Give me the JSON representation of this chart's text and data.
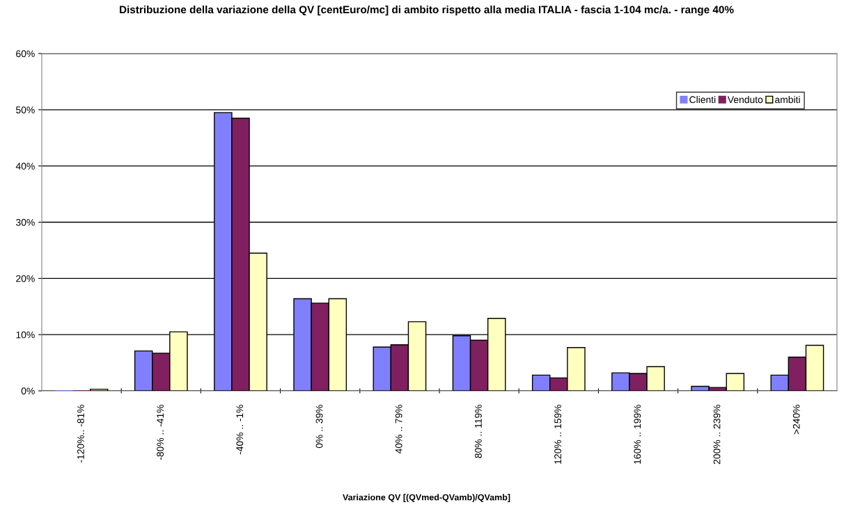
{
  "chart_data": {
    "type": "bar",
    "title": "Distribuzione della variazione della QV [centEuro/mc] di ambito rispetto alla media ITALIA - fascia 1-104 mc/a. - range 40%",
    "xlabel": "Variazione QV [(QVmed-QVamb)/QVamb]",
    "categories": [
      "-120%.. -81%",
      "-80% .. -41%",
      "-40% .. -1%",
      "0% .. 39%",
      "40% .. 79%",
      "80% .. 119%",
      "120% .. 159%",
      "160% .. 199%",
      "200% .. 239%",
      ">240%"
    ],
    "series": [
      {
        "name": "Clienti",
        "color": "#8080ff",
        "values": [
          0,
          7.1,
          49.5,
          16.4,
          7.8,
          9.8,
          2.8,
          3.2,
          0.8,
          2.8
        ]
      },
      {
        "name": "Venduto",
        "color": "#802060",
        "values": [
          0,
          6.7,
          48.5,
          15.6,
          8.2,
          9.0,
          2.3,
          3.1,
          0.6,
          6.0
        ]
      },
      {
        "name": "ambiti",
        "color": "#ffffc0",
        "values": [
          0.3,
          10.5,
          24.5,
          16.4,
          12.3,
          12.9,
          7.7,
          4.3,
          3.1,
          8.1
        ]
      }
    ],
    "ylim": [
      0,
      60
    ],
    "yticks": [
      {
        "value": 0,
        "label": "0%"
      },
      {
        "value": 10,
        "label": "10%"
      },
      {
        "value": 20,
        "label": "20%"
      },
      {
        "value": 30,
        "label": "30%"
      },
      {
        "value": 40,
        "label": "40%"
      },
      {
        "value": 50,
        "label": "50%"
      },
      {
        "value": 60,
        "label": "60%"
      }
    ],
    "grid": "y",
    "legend": "top right"
  }
}
